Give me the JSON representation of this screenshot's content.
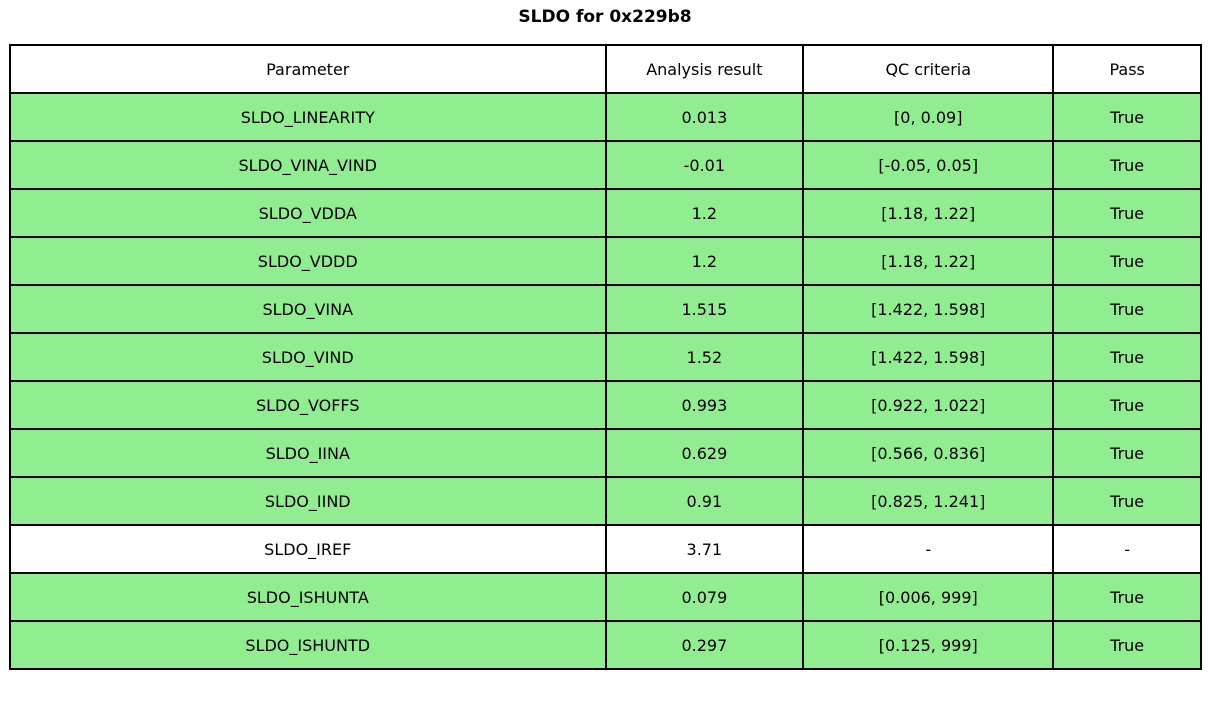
{
  "title": "SLDO for 0x229b8",
  "chart_data": {
    "type": "table",
    "title": "SLDO for 0x229b8",
    "columns": [
      "Parameter",
      "Analysis result",
      "QC criteria",
      "Pass"
    ],
    "rows": [
      [
        "SLDO_LINEARITY",
        "0.013",
        "[0, 0.09]",
        "True"
      ],
      [
        "SLDO_VINA_VIND",
        "-0.01",
        "[-0.05, 0.05]",
        "True"
      ],
      [
        "SLDO_VDDA",
        "1.2",
        "[1.18, 1.22]",
        "True"
      ],
      [
        "SLDO_VDDD",
        "1.2",
        "[1.18, 1.22]",
        "True"
      ],
      [
        "SLDO_VINA",
        "1.515",
        "[1.422, 1.598]",
        "True"
      ],
      [
        "SLDO_VIND",
        "1.52",
        "[1.422, 1.598]",
        "True"
      ],
      [
        "SLDO_VOFFS",
        "0.993",
        "[0.922, 1.022]",
        "True"
      ],
      [
        "SLDO_IINA",
        "0.629",
        "[0.566, 0.836]",
        "True"
      ],
      [
        "SLDO_IIND",
        "0.91",
        "[0.825, 1.241]",
        "True"
      ],
      [
        "SLDO_IREF",
        "3.71",
        "-",
        "-"
      ],
      [
        "SLDO_ISHUNTA",
        "0.079",
        "[0.006, 999]",
        "True"
      ],
      [
        "SLDO_ISHUNTD",
        "0.297",
        "[0.125, 999]",
        "True"
      ]
    ],
    "row_highlight": [
      true,
      true,
      true,
      true,
      true,
      true,
      true,
      true,
      true,
      false,
      true,
      true
    ],
    "layout": {
      "column_widths_pct": [
        50.0,
        16.6,
        21.0,
        12.4
      ],
      "legend_position": "none",
      "grid": "full-borders"
    },
    "colors": {
      "pass_row_bg": "#90EE90",
      "plain_row_bg": "#FFFFFF",
      "border": "#000000",
      "text": "#000000"
    }
  }
}
